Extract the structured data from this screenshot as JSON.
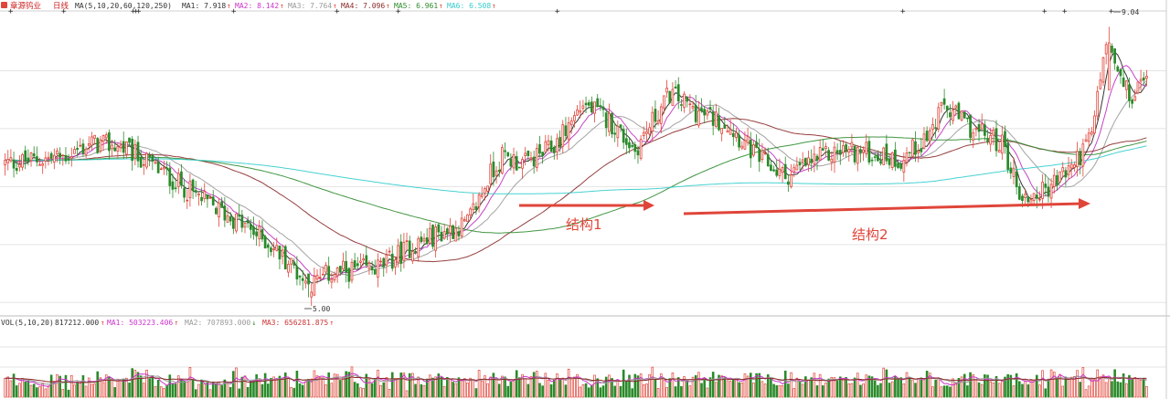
{
  "header": {
    "stock_name": "章源钨业",
    "period": "日线",
    "ma_params": "MA(5,10,20,60,120,250)",
    "ma_values": [
      {
        "label": "MA1:",
        "value": "7.918",
        "arrow": "↑",
        "color": "#333333"
      },
      {
        "label": "MA2:",
        "value": "8.142",
        "arrow": "↑",
        "color": "#cc33cc"
      },
      {
        "label": "MA3:",
        "value": "7.764",
        "arrow": "↑",
        "color": "#999999"
      },
      {
        "label": "MA4:",
        "value": "7.096",
        "arrow": "↑",
        "color": "#8b2a2a"
      },
      {
        "label": "MA5:",
        "value": "6.961",
        "arrow": "↑",
        "color": "#2e8b2e"
      },
      {
        "label": "MA6:",
        "value": "6.508",
        "arrow": "↑",
        "color": "#33cccc"
      }
    ]
  },
  "volume_header": {
    "label": "VOL(5,10,20)",
    "value": "817212.000",
    "arrow": "↑",
    "ma_values": [
      {
        "label": "MA1:",
        "value": "503223.406",
        "arrow": "↑",
        "color": "#cc33cc"
      },
      {
        "label": "MA2:",
        "value": "707893.000",
        "arrow": "↓",
        "color": "#999999"
      },
      {
        "label": "MA3:",
        "value": "656281.875",
        "arrow": "↑",
        "color": "#cc3333"
      }
    ]
  },
  "annotations": {
    "structure1": "结构1",
    "structure2": "结构2",
    "high_label": "9.04",
    "low_label": "5.00"
  },
  "colors": {
    "up": "#e0453a",
    "down": "#2a8a2a",
    "arrow": "#e0453a",
    "grid": "#e4e4e4",
    "ma1": "#222222",
    "ma2": "#c030c0",
    "ma3": "#999999",
    "ma4": "#8b2a2a",
    "ma5": "#2e8b2e",
    "ma6": "#33cccc",
    "vol_ma1": "#cc33cc",
    "vol_ma2": "#999999",
    "vol_ma3": "#8b2a2a"
  },
  "chart_data": {
    "type": "candlestick",
    "y_range": [
      4.75,
      9.25
    ],
    "volume_range": [
      0,
      1600000
    ],
    "high": 9.04,
    "low": 5.0,
    "key_points": [
      {
        "t": 0,
        "c": 7.0
      },
      {
        "t": 10,
        "c": 7.05
      },
      {
        "t": 20,
        "c": 7.1
      },
      {
        "t": 30,
        "c": 7.3
      },
      {
        "t": 40,
        "c": 7.25
      },
      {
        "t": 50,
        "c": 7.0
      },
      {
        "t": 60,
        "c": 6.7
      },
      {
        "t": 70,
        "c": 6.4
      },
      {
        "t": 80,
        "c": 6.15
      },
      {
        "t": 90,
        "c": 5.85
      },
      {
        "t": 100,
        "c": 5.45
      },
      {
        "t": 105,
        "c": 5.15
      },
      {
        "t": 112,
        "c": 5.35
      },
      {
        "t": 120,
        "c": 5.4
      },
      {
        "t": 130,
        "c": 5.45
      },
      {
        "t": 140,
        "c": 5.75
      },
      {
        "t": 150,
        "c": 5.95
      },
      {
        "t": 160,
        "c": 6.1
      },
      {
        "t": 168,
        "c": 6.85
      },
      {
        "t": 172,
        "c": 7.1
      },
      {
        "t": 180,
        "c": 7.0
      },
      {
        "t": 190,
        "c": 7.25
      },
      {
        "t": 200,
        "c": 7.9
      },
      {
        "t": 210,
        "c": 7.6
      },
      {
        "t": 218,
        "c": 7.2
      },
      {
        "t": 230,
        "c": 8.05
      },
      {
        "t": 240,
        "c": 7.75
      },
      {
        "t": 250,
        "c": 7.6
      },
      {
        "t": 260,
        "c": 7.1
      },
      {
        "t": 270,
        "c": 6.8
      },
      {
        "t": 280,
        "c": 7.05
      },
      {
        "t": 290,
        "c": 7.2
      },
      {
        "t": 300,
        "c": 7.15
      },
      {
        "t": 310,
        "c": 7.05
      },
      {
        "t": 320,
        "c": 7.45
      },
      {
        "t": 325,
        "c": 7.85
      },
      {
        "t": 335,
        "c": 7.5
      },
      {
        "t": 345,
        "c": 7.3
      },
      {
        "t": 352,
        "c": 6.45
      },
      {
        "t": 360,
        "c": 6.6
      },
      {
        "t": 370,
        "c": 7.0
      },
      {
        "t": 376,
        "c": 7.4
      },
      {
        "t": 380,
        "c": 8.6
      },
      {
        "t": 382,
        "c": 8.75
      },
      {
        "t": 386,
        "c": 8.2
      },
      {
        "t": 390,
        "c": 7.95
      },
      {
        "t": 395,
        "c": 8.35
      }
    ],
    "count": 396,
    "moving_averages": [
      {
        "name": "MA1",
        "period": 5
      },
      {
        "name": "MA2",
        "period": 10
      },
      {
        "name": "MA3",
        "period": 20
      },
      {
        "name": "MA4",
        "period": 60
      },
      {
        "name": "MA5",
        "period": 120
      },
      {
        "name": "MA6",
        "period": 250
      }
    ],
    "volume_moving_averages": [
      5,
      10,
      20
    ]
  }
}
